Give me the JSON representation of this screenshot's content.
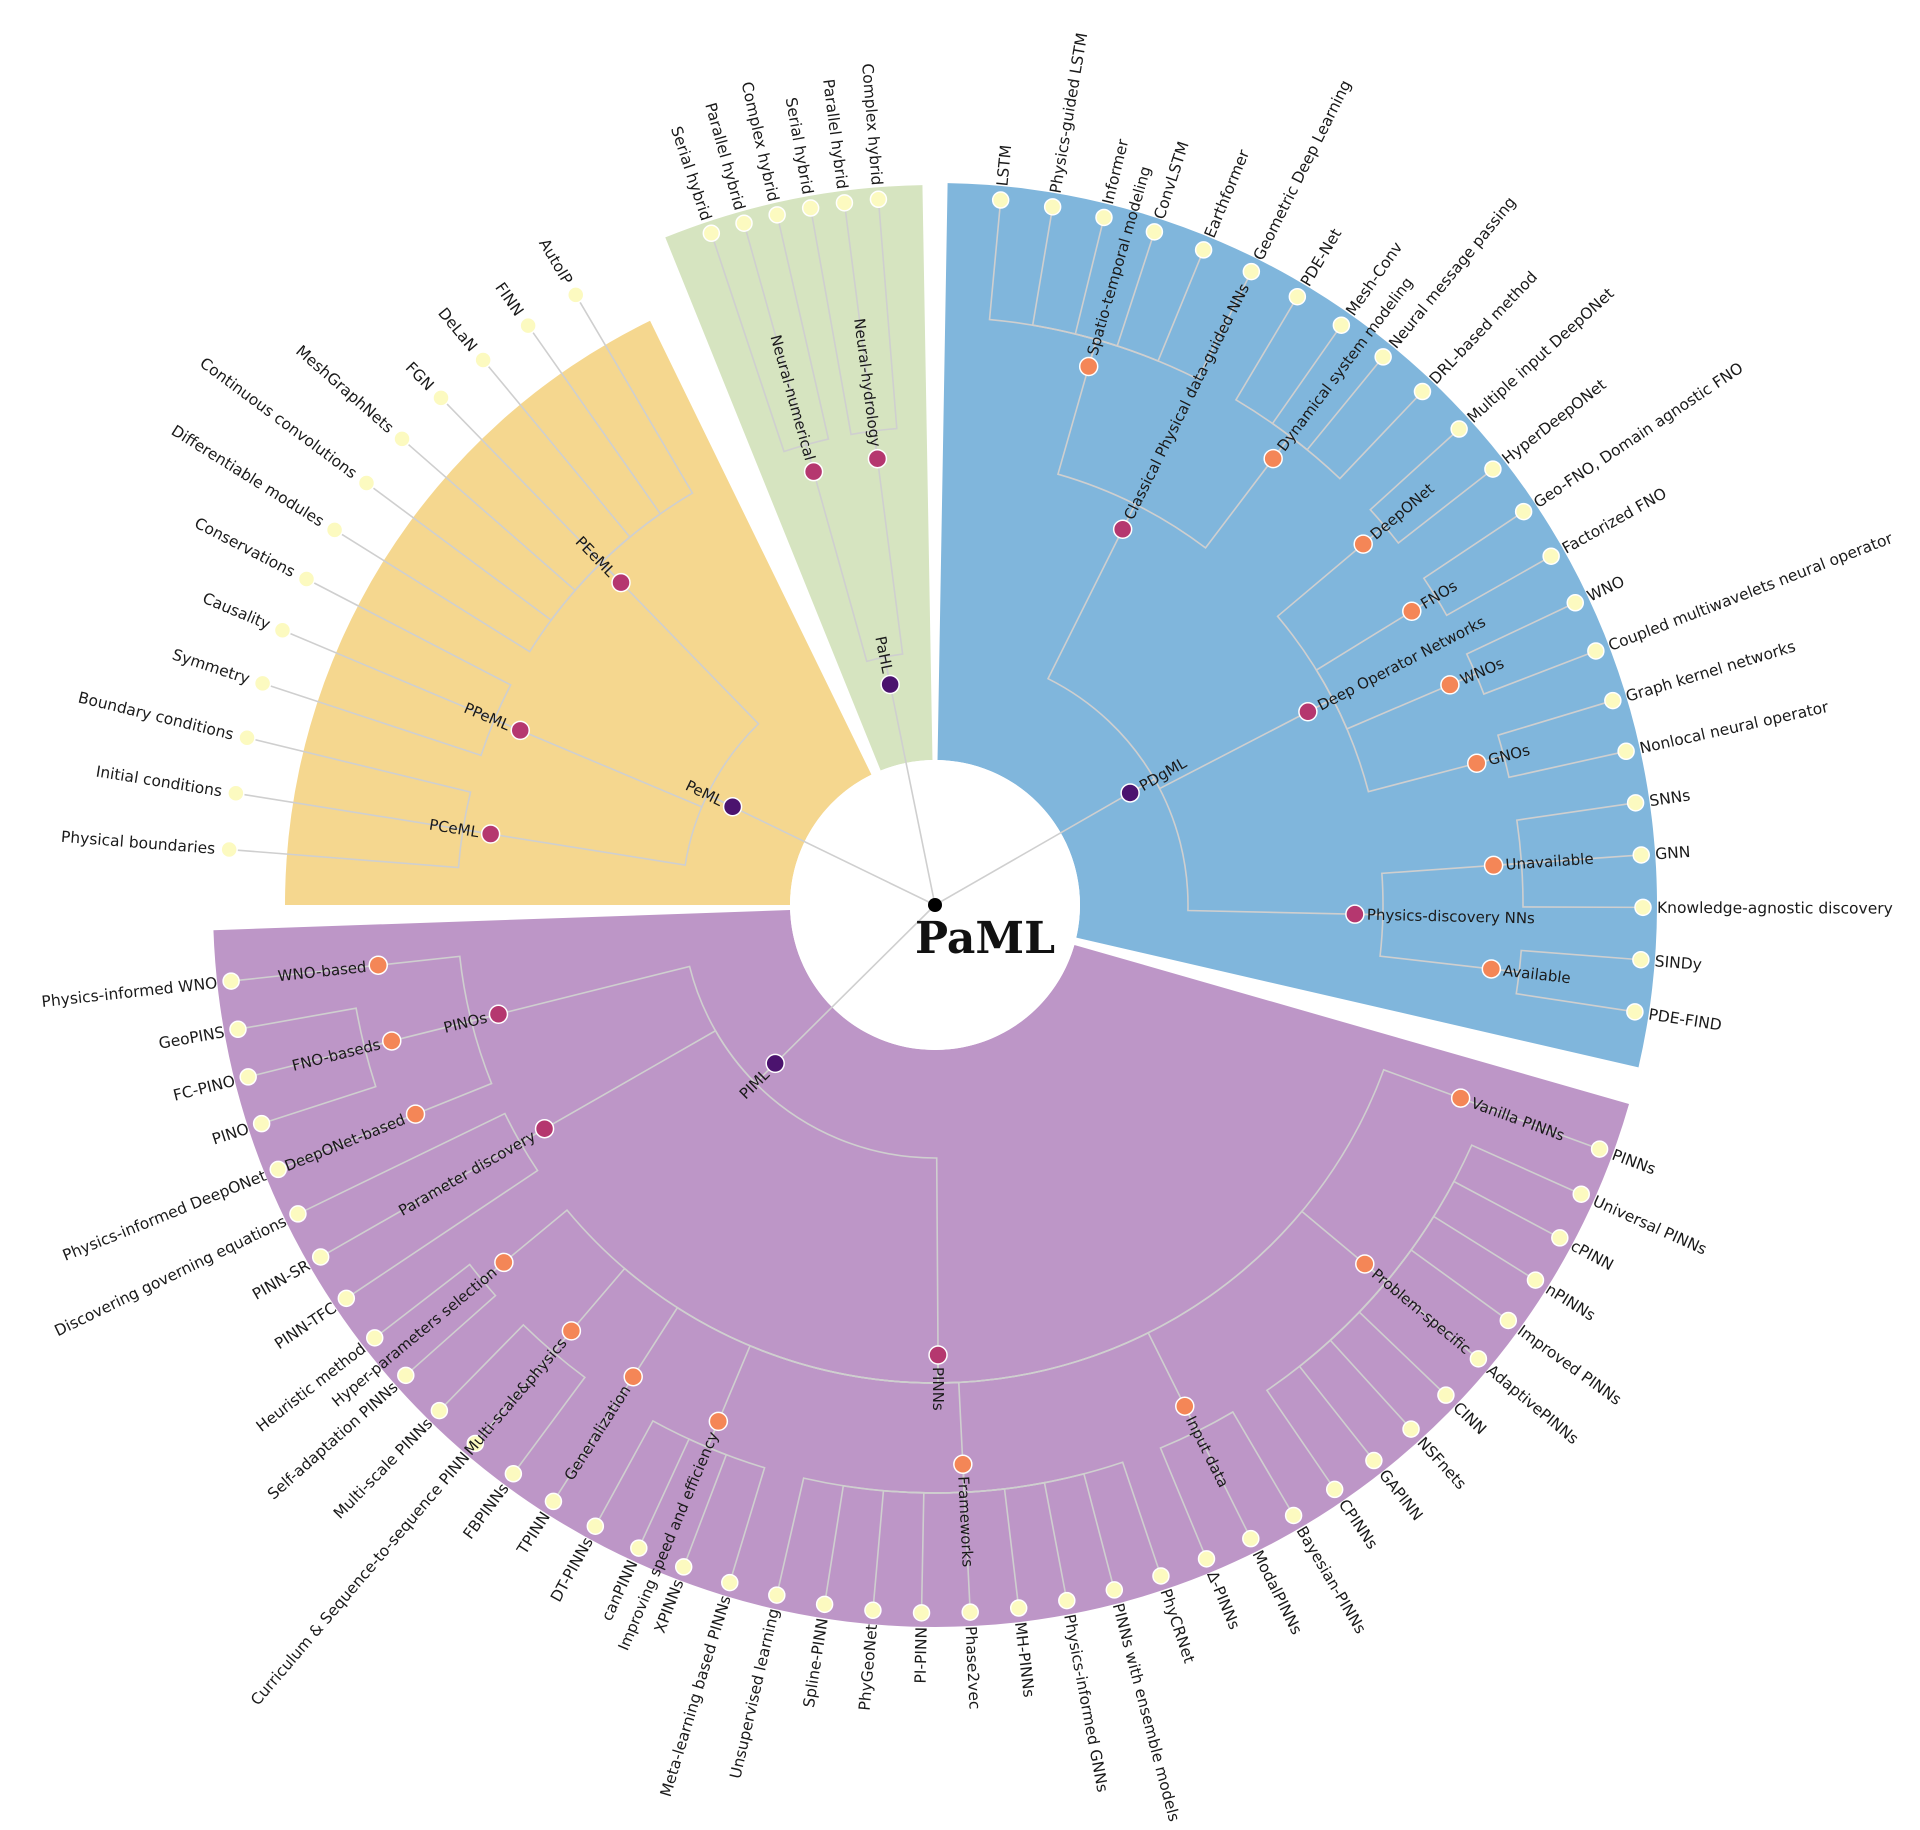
{
  "title": "PaML",
  "colors": {
    "sector_PeML": "#f5d78f",
    "sector_PaHL": "#d6e4c0",
    "sector_PDgML": "#80b6dc",
    "sector_PIML": "#bd96c7",
    "node_level1": "#4b136e",
    "node_level2": "#b5376f",
    "node_level3": "#f48657",
    "node_leaf": "#fcfac0",
    "link": "#cfcfcf"
  },
  "tree": {
    "name": "PaML",
    "children": [
      {
        "name": "PeML",
        "sector": [
          -90,
          -26
        ],
        "children": [
          {
            "name": "PCeML",
            "children": [
              {
                "name": "Physical boundaries"
              },
              {
                "name": "Initial conditions"
              },
              {
                "name": "Boundary conditions"
              }
            ]
          },
          {
            "name": "PPeML",
            "children": [
              {
                "name": "Symmetry"
              },
              {
                "name": "Causality"
              },
              {
                "name": "Conservations"
              }
            ]
          },
          {
            "name": "PEeML",
            "children": [
              {
                "name": "Differentiable modules"
              },
              {
                "name": "Continuous convolutions"
              },
              {
                "name": "MeshGraphNets"
              },
              {
                "name": "FGN"
              },
              {
                "name": "DeLaN"
              },
              {
                "name": "FINN"
              },
              {
                "name": "AutoIP"
              }
            ]
          }
        ]
      },
      {
        "name": "PaHL",
        "sector": [
          -22,
          -1
        ],
        "children": [
          {
            "name": "Neural-numerical",
            "children": [
              {
                "name": "Serial hybrid"
              },
              {
                "name": "Parallel hybrid"
              },
              {
                "name": "Complex hybrid"
              }
            ]
          },
          {
            "name": "Neural-hydrology",
            "children": [
              {
                "name": "Serial hybrid"
              },
              {
                "name": "Parallel hybrid"
              },
              {
                "name": "Complex hybrid"
              }
            ]
          }
        ]
      },
      {
        "name": "PDgML",
        "sector": [
          1,
          103
        ],
        "children": [
          {
            "name": "Classical Physical data-guided NNs",
            "children": [
              {
                "name": "Spatio-temporal modeling",
                "children": [
                  {
                    "name": "LSTM"
                  },
                  {
                    "name": "Physics-guided LSTM"
                  },
                  {
                    "name": "Informer"
                  },
                  {
                    "name": "ConvLSTM"
                  },
                  {
                    "name": "Earthformer"
                  },
                  {
                    "name": "Geometric Deep Learning"
                  }
                ]
              },
              {
                "name": "Dynamical system modeling",
                "children": [
                  {
                    "name": "PDE-Net"
                  },
                  {
                    "name": "Mesh-Conv"
                  },
                  {
                    "name": "Neural message passing"
                  },
                  {
                    "name": "DRL-based method"
                  }
                ]
              }
            ]
          },
          {
            "name": "Deep Operator Networks",
            "children": [
              {
                "name": "DeepONet",
                "children": [
                  {
                    "name": "Multiple input DeepONet"
                  },
                  {
                    "name": "HyperDeepONet"
                  }
                ]
              },
              {
                "name": "FNOs",
                "children": [
                  {
                    "name": "Geo-FNO, Domain agnostic FNO"
                  },
                  {
                    "name": "Factorized FNO"
                  }
                ]
              },
              {
                "name": "WNOs",
                "children": [
                  {
                    "name": "WNO"
                  },
                  {
                    "name": "Coupled multiwavelets neural operator"
                  }
                ]
              },
              {
                "name": "GNOs",
                "children": [
                  {
                    "name": "Graph kernel networks"
                  },
                  {
                    "name": "Nonlocal neural operator"
                  }
                ]
              }
            ]
          },
          {
            "name": "Physics-discovery NNs",
            "children": [
              {
                "name": "Unavailable",
                "children": [
                  {
                    "name": "SNNs"
                  },
                  {
                    "name": "GNN"
                  },
                  {
                    "name": "Knowledge-agnostic discovery"
                  }
                ]
              },
              {
                "name": "Available",
                "children": [
                  {
                    "name": "SINDy"
                  },
                  {
                    "name": "PDE-FIND"
                  }
                ]
              }
            ]
          }
        ]
      },
      {
        "name": "PIML",
        "sector": [
          106,
          268
        ],
        "children": [
          {
            "name": "PINNs",
            "children": [
              {
                "name": "Vanilla PINNs",
                "children": [
                  {
                    "name": "PINNs"
                  }
                ]
              },
              {
                "name": "Problem-specific",
                "children": [
                  {
                    "name": "Universal PINNs"
                  },
                  {
                    "name": "cPINN"
                  },
                  {
                    "name": "nPINNs"
                  },
                  {
                    "name": "Improved PINNs"
                  },
                  {
                    "name": "AdaptivePINNs"
                  },
                  {
                    "name": "CINN"
                  },
                  {
                    "name": "NSFnets"
                  },
                  {
                    "name": "GAPINN"
                  },
                  {
                    "name": "CPINNs"
                  }
                ]
              },
              {
                "name": "Input data",
                "children": [
                  {
                    "name": "Bayesian-PINNs"
                  },
                  {
                    "name": "ModalPINNs"
                  },
                  {
                    "name": "Δ-PINNs"
                  }
                ]
              },
              {
                "name": "Frameworks",
                "children": [
                  {
                    "name": "PhyCRNet"
                  },
                  {
                    "name": "PINNs with ensemble models"
                  },
                  {
                    "name": "Physics-informed GNNs"
                  },
                  {
                    "name": "MH-PINNs"
                  },
                  {
                    "name": "Phase2vec"
                  },
                  {
                    "name": "PI-PINN"
                  },
                  {
                    "name": "PhyGeoNet"
                  },
                  {
                    "name": "Spline-PINN"
                  },
                  {
                    "name": "Unsupervised learning"
                  }
                ]
              },
              {
                "name": "Improving speed and efficiency",
                "children": [
                  {
                    "name": "Meta-learning based PINNs"
                  },
                  {
                    "name": "XPINNs"
                  },
                  {
                    "name": "canPINN"
                  },
                  {
                    "name": "DT-PINNs"
                  }
                ]
              },
              {
                "name": "Generalization",
                "children": [
                  {
                    "name": "TPINN"
                  }
                ]
              },
              {
                "name": "Multi-scale&physics",
                "children": [
                  {
                    "name": "FBPINNs"
                  },
                  {
                    "name": "Curriculum & Sequence-to-sequence PINN"
                  },
                  {
                    "name": "Multi-scale PINNs"
                  }
                ]
              },
              {
                "name": "Hyper-parameters selection",
                "children": [
                  {
                    "name": "Self-adaptation PINNs"
                  },
                  {
                    "name": "Heuristic method"
                  }
                ]
              }
            ]
          },
          {
            "name": "Parameter discovery",
            "children": [
              {
                "name": "PINN-TFC"
              },
              {
                "name": "PINN-SR"
              },
              {
                "name": "Discovering governing equations"
              }
            ]
          },
          {
            "name": "PINOs",
            "children": [
              {
                "name": "DeepONet-based",
                "children": [
                  {
                    "name": "Physics-informed DeepONet"
                  }
                ]
              },
              {
                "name": "FNO-baseds",
                "children": [
                  {
                    "name": "PINO"
                  },
                  {
                    "name": "FC-PINO"
                  },
                  {
                    "name": "GeoPINS"
                  }
                ]
              },
              {
                "name": "WNO-based",
                "children": [
                  {
                    "name": "Physics-informed WNO"
                  }
                ]
              }
            ]
          }
        ]
      }
    ]
  }
}
